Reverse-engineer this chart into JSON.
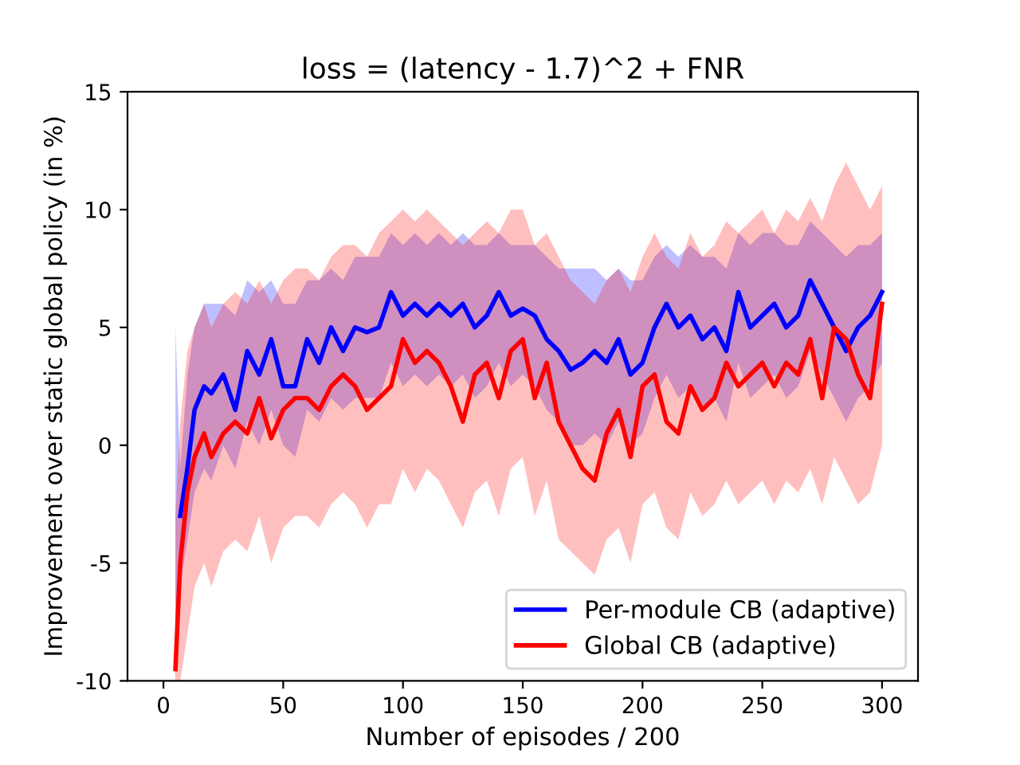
{
  "chart_data": {
    "type": "line",
    "title": "loss = (latency - 1.7)^2 + FNR",
    "xlabel": "Number of episodes / 200",
    "ylabel": "Improvement over static global policy (in %)",
    "x": [
      5,
      7,
      10,
      13,
      17,
      20,
      25,
      30,
      35,
      40,
      45,
      50,
      55,
      60,
      65,
      70,
      75,
      80,
      85,
      90,
      95,
      100,
      105,
      110,
      115,
      120,
      125,
      130,
      135,
      140,
      145,
      150,
      155,
      160,
      165,
      170,
      175,
      180,
      185,
      190,
      195,
      200,
      205,
      210,
      215,
      220,
      225,
      230,
      235,
      240,
      245,
      250,
      255,
      260,
      265,
      270,
      275,
      280,
      285,
      290,
      295,
      300
    ],
    "series": [
      {
        "name": "Per-module CB (adaptive)",
        "color": "#0000ff",
        "values": [
          null,
          -3,
          -1,
          1.5,
          2.5,
          2.2,
          3,
          1.5,
          4,
          3,
          4.5,
          2.5,
          2.5,
          4.5,
          3.5,
          5,
          4,
          5,
          4.8,
          5,
          6.5,
          5.5,
          6,
          5.5,
          6,
          5.5,
          6,
          5,
          5.5,
          6.5,
          5.5,
          5.8,
          5.5,
          4.5,
          4,
          3.2,
          3.5,
          4,
          3.5,
          4.5,
          3,
          3.5,
          5,
          6,
          5,
          5.5,
          4.5,
          5,
          4,
          6.5,
          5,
          5.5,
          6,
          5,
          5.5,
          7,
          6,
          5,
          4,
          5,
          5.5,
          6.5
        ],
        "upper": [
          5,
          -1,
          3,
          5,
          6,
          6,
          6,
          5.5,
          7,
          6.5,
          7,
          6,
          6,
          7,
          7,
          7.5,
          7,
          8,
          8,
          8,
          9,
          8.5,
          9,
          8.5,
          9,
          8.5,
          9,
          8.5,
          8.5,
          9,
          8.5,
          8.5,
          8.5,
          8,
          7.5,
          7.5,
          7.5,
          7.5,
          7,
          7.5,
          7,
          7,
          8,
          8.5,
          8,
          8.5,
          8,
          8,
          7.5,
          9,
          8.5,
          9,
          9,
          8.5,
          8.5,
          9.5,
          9,
          8.5,
          8,
          8.5,
          8.5,
          9
        ],
        "lower": [
          -10,
          -6,
          -4,
          -2,
          -1,
          -1.5,
          0,
          -1,
          1,
          0,
          1.5,
          0,
          -0.5,
          1.5,
          1,
          2,
          1.5,
          2,
          2,
          2,
          3.5,
          2.5,
          3,
          2.5,
          3,
          2.5,
          3,
          2,
          2.5,
          3.5,
          2.5,
          3,
          2.5,
          1.5,
          1,
          0,
          0,
          0.5,
          0,
          1,
          0,
          0.5,
          2,
          3,
          2,
          2.5,
          1.5,
          2,
          1,
          3.5,
          2,
          2.5,
          3,
          2,
          2.5,
          4,
          3,
          2,
          1,
          2,
          2.5,
          3.5
        ]
      },
      {
        "name": "Global CB (adaptive)",
        "color": "#ff0000",
        "values": [
          -9.5,
          -5,
          -2,
          -0.5,
          0.5,
          -0.5,
          0.5,
          1,
          0.5,
          2,
          0.3,
          1.5,
          2,
          2,
          1.5,
          2.5,
          3,
          2.5,
          1.5,
          2,
          2.5,
          4.5,
          3.5,
          4,
          3.5,
          2.5,
          1,
          3,
          3.5,
          2,
          4,
          4.5,
          2,
          3.5,
          1,
          0,
          -1,
          -1.5,
          0.5,
          1.5,
          -0.5,
          2.5,
          3,
          1,
          0.5,
          2.5,
          1.5,
          2,
          3.5,
          2.5,
          3,
          3.5,
          2.5,
          3.5,
          3,
          4.5,
          2,
          5,
          4.5,
          3,
          2,
          6
        ],
        "upper": [
          -3,
          1,
          4,
          5,
          6,
          5,
          6,
          6.5,
          6,
          7,
          6,
          7,
          7.5,
          7.5,
          7,
          8,
          8.5,
          8.5,
          8,
          9,
          9.5,
          10,
          9.5,
          10,
          9.5,
          9,
          8.5,
          9,
          9.5,
          9,
          10,
          10,
          8.5,
          9,
          8,
          7,
          6.5,
          6,
          7,
          7.5,
          6.5,
          8,
          9,
          8,
          7.5,
          9,
          8,
          8.5,
          9.5,
          9,
          9.5,
          10,
          9,
          10,
          9.5,
          10.5,
          9.5,
          11,
          12,
          11,
          10,
          11
        ],
        "lower": [
          -10,
          -10,
          -8,
          -6,
          -5,
          -6,
          -4.5,
          -4,
          -4.5,
          -3,
          -5,
          -3.5,
          -3,
          -3,
          -3.5,
          -2.5,
          -2,
          -2.5,
          -3.5,
          -2.5,
          -2.5,
          -1,
          -2,
          -1,
          -1.5,
          -2.5,
          -3.5,
          -2,
          -1.5,
          -3,
          -1,
          -0.5,
          -3,
          -1.5,
          -4,
          -4.5,
          -5,
          -5.5,
          -4,
          -3.5,
          -5,
          -2.5,
          -2,
          -3.5,
          -4,
          -2,
          -3,
          -2.5,
          -1.5,
          -2.5,
          -2,
          -1.5,
          -2.5,
          -1.5,
          -2,
          -1,
          -2.5,
          -0.5,
          -1.5,
          -2.5,
          -2,
          0
        ]
      }
    ],
    "xlim": [
      -15,
      315
    ],
    "ylim": [
      -10,
      15
    ],
    "xticks": [
      0,
      50,
      100,
      150,
      200,
      250,
      300
    ],
    "yticks": [
      -10,
      -5,
      0,
      5,
      10,
      15
    ],
    "legend": "lower right",
    "grid": false,
    "marker": "none",
    "line_style": "solid"
  }
}
